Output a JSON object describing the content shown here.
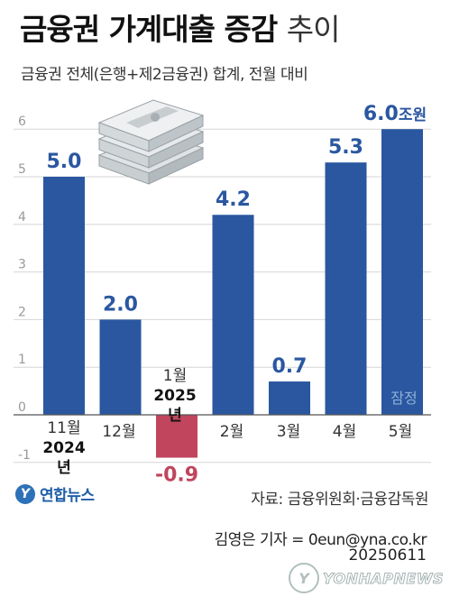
{
  "header": {
    "title_bold": "금융권 가계대출 증감",
    "title_light": "추이",
    "subtitle": "금융권 전체(은행+제2금융권) 합계, 전월 대비"
  },
  "chart_data": {
    "type": "bar",
    "title": "금융권 가계대출 증감 추이",
    "categories": [
      "11월 2024년",
      "12월",
      "1월 2025년",
      "2월",
      "3월",
      "4월",
      "5월"
    ],
    "values": [
      5.0,
      2.0,
      -0.9,
      4.2,
      0.7,
      5.3,
      6.0
    ],
    "value_labels": [
      "5.0",
      "2.0",
      "-0.9",
      "4.2",
      "0.7",
      "5.3",
      "6.0조원"
    ],
    "ylim": [
      -1,
      6
    ],
    "yticks": [
      "-1",
      "0",
      "1",
      "2",
      "3",
      "4",
      "5",
      "6"
    ],
    "grid": true,
    "xlabel": "",
    "ylabel": "",
    "annotations": [
      "잠정"
    ],
    "colors": {
      "positive": "#2a57a0",
      "negative": "#c0455d",
      "grid": "#d6d6d6",
      "label": "#2a57a0",
      "negative_label": "#c0455d"
    }
  },
  "x_labels": {
    "nov_month": "11월",
    "nov_year": "2024년",
    "dec": "12월",
    "jan_month": "1월",
    "jan_year": "2025년",
    "feb": "2월",
    "mar": "3월",
    "apr": "4월",
    "may": "5월"
  },
  "note_preliminary": "잠정",
  "footer": {
    "source": "자료: 금융위원회·금융감독원",
    "reporter": "김영은 기자 = 0eun@yna.co.kr",
    "date": "20250611",
    "logo_text": "연합뉴스",
    "watermark": "YONHAPNEWS"
  },
  "icons": {
    "illustration": "money-bundle-icon",
    "logo": "yonhap-logo-icon"
  }
}
